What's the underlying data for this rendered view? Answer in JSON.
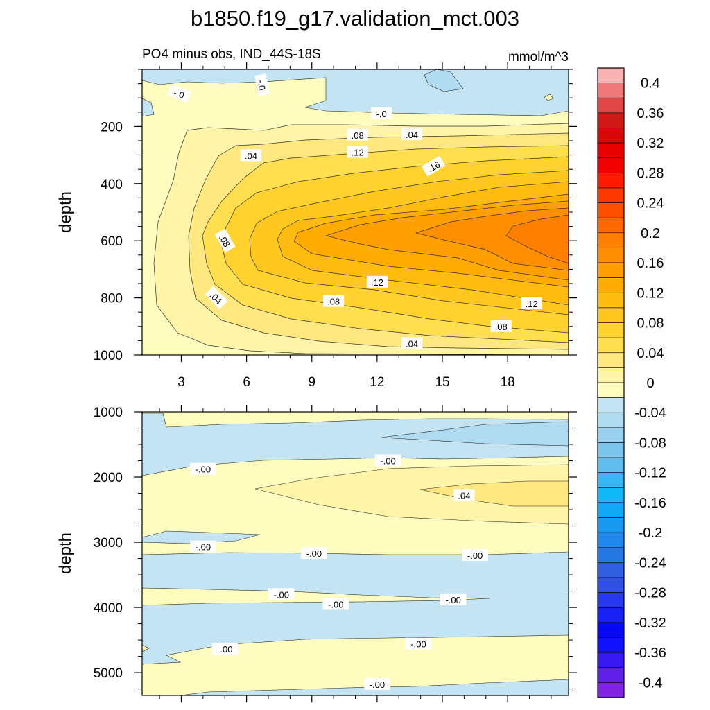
{
  "chart_data": {
    "type": "contour",
    "title": "b1850.f19_g17.validation_mct.003",
    "subtitle_left": "PO4 minus obs, IND_44S-18S",
    "units": "mmol/m^3",
    "panels": [
      {
        "name": "upper",
        "ylabel": "depth",
        "xlim": [
          1.2,
          20.8
        ],
        "ylim": [
          1000,
          0
        ],
        "xticks": [
          3,
          6,
          9,
          12,
          15,
          18
        ],
        "yticks": [
          200,
          400,
          600,
          800,
          1000
        ],
        "contour_labels": [
          {
            "text": "-.0",
            "x": 2.9,
            "y": 85,
            "rot": 20
          },
          {
            "text": "-.0",
            "x": 6.7,
            "y": 55,
            "rot": 80
          },
          {
            "text": "-.0",
            "x": 12.2,
            "y": 155,
            "rot": 0
          },
          {
            "text": ".04",
            "x": 13.6,
            "y": 228,
            "rot": 0
          },
          {
            "text": ".04",
            "x": 6.2,
            "y": 302,
            "rot": 0
          },
          {
            "text": ".08",
            "x": 11.1,
            "y": 230,
            "rot": 0
          },
          {
            "text": ".12",
            "x": 11.1,
            "y": 290,
            "rot": 0
          },
          {
            "text": ".16",
            "x": 14.6,
            "y": 340,
            "rot": -30
          },
          {
            "text": ".08",
            "x": 5.0,
            "y": 600,
            "rot": 60
          },
          {
            "text": ".04",
            "x": 4.6,
            "y": 800,
            "rot": 45
          },
          {
            "text": ".08",
            "x": 10.0,
            "y": 812,
            "rot": 0
          },
          {
            "text": ".12",
            "x": 12.0,
            "y": 745,
            "rot": 0
          },
          {
            "text": ".12",
            "x": 19.1,
            "y": 820,
            "rot": 0
          },
          {
            "text": ".08",
            "x": 17.7,
            "y": 900,
            "rot": 0
          },
          {
            "text": ".04",
            "x": 13.6,
            "y": 960,
            "rot": 0
          }
        ]
      },
      {
        "name": "lower",
        "ylabel": "depth",
        "xlim": [
          1.2,
          20.8
        ],
        "ylim": [
          5350,
          1000
        ],
        "yticks": [
          1000,
          2000,
          3000,
          4000,
          5000
        ],
        "contour_labels": [
          {
            "text": "-.00",
            "x": 4.0,
            "y": 1880,
            "rot": 0
          },
          {
            "text": "-.00",
            "x": 12.5,
            "y": 1750,
            "rot": 0
          },
          {
            "text": ".04",
            "x": 16.0,
            "y": 2280,
            "rot": 0
          },
          {
            "text": "-.00",
            "x": 4.0,
            "y": 3070,
            "rot": 0
          },
          {
            "text": "-.00",
            "x": 9.1,
            "y": 3170,
            "rot": 0
          },
          {
            "text": "-.00",
            "x": 16.5,
            "y": 3200,
            "rot": 0
          },
          {
            "text": "-.00",
            "x": 7.6,
            "y": 3800,
            "rot": 0
          },
          {
            "text": "-.00",
            "x": 10.1,
            "y": 3950,
            "rot": 0
          },
          {
            "text": "-.00",
            "x": 15.5,
            "y": 3880,
            "rot": 0
          },
          {
            "text": "-.00",
            "x": 5.0,
            "y": 4640,
            "rot": 0
          },
          {
            "text": "-.00",
            "x": 13.9,
            "y": 4560,
            "rot": 0
          },
          {
            "text": "-.00",
            "x": 12.0,
            "y": 5180,
            "rot": 0
          }
        ]
      }
    ],
    "colorbar": {
      "labels": [
        "0.4",
        "0.36",
        "0.32",
        "0.28",
        "0.24",
        "0.2",
        "0.16",
        "0.12",
        "0.08",
        "0.04",
        "0",
        "-0.04",
        "-0.08",
        "-0.12",
        "-0.16",
        "-0.2",
        "-0.24",
        "-0.28",
        "-0.32",
        "-0.36",
        "-0.4"
      ],
      "colors": [
        "#f8b2b2",
        "#ef7878",
        "#e04646",
        "#d01818",
        "#d80808",
        "#e80000",
        "#f20000",
        "#ff1a00",
        "#ff3a00",
        "#ff4f00",
        "#ff6a00",
        "#ff7f00",
        "#ff8f00",
        "#ff9f00",
        "#ffab00",
        "#ffbb10",
        "#ffc820",
        "#ffd230",
        "#ffde50",
        "#ffe880",
        "#fff4a8",
        "#fffcbf",
        "#c4e4f4",
        "#b0daf0",
        "#98d0ee",
        "#7cc4ec",
        "#62bcee",
        "#3ab6f4",
        "#10b8f8",
        "#10a8f4",
        "#1898f0",
        "#2088ec",
        "#2878e4",
        "#3060e0",
        "#3050e4",
        "#2838ec",
        "#1820f4",
        "#0808f8",
        "#1010ff",
        "#3818f0",
        "#6020e8",
        "#8024e0"
      ]
    }
  }
}
